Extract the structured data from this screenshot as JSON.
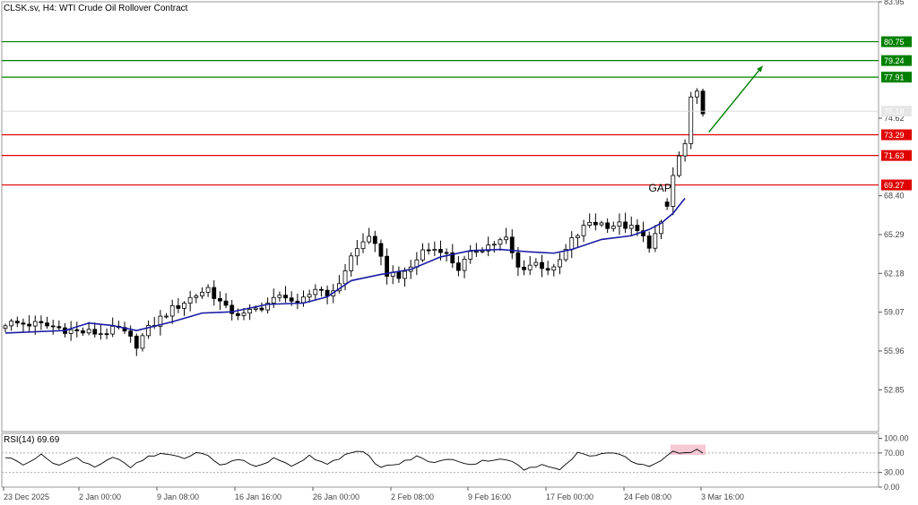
{
  "window": {
    "title": "CLSK.sv, H4:  WTI Crude Oil Rollover Contract"
  },
  "chart_data": [
    {
      "type": "candlestick",
      "title": "CLSK.sv, H4:  WTI Crude Oil Rollover Contract",
      "ylim": [
        49.5,
        83.95
      ],
      "y_ticks": [
        "83.95",
        "80.75",
        "79.24",
        "77.91",
        "74.62",
        "73.29",
        "71.63",
        "69.27",
        "68.40",
        "65.29",
        "62.18",
        "59.07",
        "55.96",
        "52.85"
      ],
      "x_ticks": [
        "23 Dec 2025",
        "2 Jan 00:00",
        "9 Jan 08:00",
        "16 Jan 16:00",
        "26 Jan 00:00",
        "2 Feb 08:00",
        "9 Feb 16:00",
        "17 Feb 00:00",
        "24 Feb 08:00",
        "3 Mar 16:00"
      ],
      "grid": false,
      "current_price": "75.18",
      "resistance_levels": [
        {
          "label": "80.75",
          "value": 80.75,
          "color": "#008000"
        },
        {
          "label": "79.24",
          "value": 79.24,
          "color": "#008000"
        },
        {
          "label": "77.91",
          "value": 77.91,
          "color": "#008000"
        }
      ],
      "support_levels": [
        {
          "label": "73.29",
          "value": 73.29,
          "color": "#e00000"
        },
        {
          "label": "71.63",
          "value": 71.63,
          "color": "#e00000"
        },
        {
          "label": "69.27",
          "value": 69.27,
          "color": "#e00000"
        }
      ],
      "annotations": [
        {
          "text": "GAP",
          "x_index": 110,
          "y": 68.6
        }
      ],
      "arrow": {
        "from": [
          118,
          73.5
        ],
        "to": [
          127,
          78.8
        ],
        "color": "#008000"
      },
      "moving_average": [
        {
          "i": 0,
          "v": 57.4
        },
        {
          "i": 10,
          "v": 57.6
        },
        {
          "i": 14,
          "v": 58.2
        },
        {
          "i": 18,
          "v": 58.0
        },
        {
          "i": 22,
          "v": 57.6
        },
        {
          "i": 28,
          "v": 58.3
        },
        {
          "i": 33,
          "v": 59.0
        },
        {
          "i": 38,
          "v": 59.1
        },
        {
          "i": 44,
          "v": 59.7
        },
        {
          "i": 50,
          "v": 59.8
        },
        {
          "i": 54,
          "v": 60.3
        },
        {
          "i": 58,
          "v": 61.6
        },
        {
          "i": 63,
          "v": 62.1
        },
        {
          "i": 68,
          "v": 62.5
        },
        {
          "i": 73,
          "v": 63.5
        },
        {
          "i": 78,
          "v": 64.0
        },
        {
          "i": 83,
          "v": 64.1
        },
        {
          "i": 88,
          "v": 63.9
        },
        {
          "i": 92,
          "v": 63.8
        },
        {
          "i": 95,
          "v": 64.1
        },
        {
          "i": 100,
          "v": 64.9
        },
        {
          "i": 105,
          "v": 65.2
        },
        {
          "i": 108,
          "v": 65.7
        },
        {
          "i": 110,
          "v": 66.2
        },
        {
          "i": 112,
          "v": 67.0
        },
        {
          "i": 114,
          "v": 68.2
        }
      ],
      "anchors": [
        {
          "i": 0,
          "v": 58.2
        },
        {
          "i": 5,
          "v": 58.1
        },
        {
          "i": 8,
          "v": 57.9
        },
        {
          "i": 12,
          "v": 57.5
        },
        {
          "i": 16,
          "v": 57.4
        },
        {
          "i": 19,
          "v": 57.7
        },
        {
          "i": 22,
          "v": 56.5
        },
        {
          "i": 24,
          "v": 57.7
        },
        {
          "i": 27,
          "v": 59.0
        },
        {
          "i": 31,
          "v": 60.2
        },
        {
          "i": 34,
          "v": 61.0
        },
        {
          "i": 37,
          "v": 59.3
        },
        {
          "i": 40,
          "v": 58.8
        },
        {
          "i": 44,
          "v": 59.8
        },
        {
          "i": 47,
          "v": 60.5
        },
        {
          "i": 49,
          "v": 59.5
        },
        {
          "i": 52,
          "v": 61.0
        },
        {
          "i": 55,
          "v": 60.5
        },
        {
          "i": 58,
          "v": 63.5
        },
        {
          "i": 61,
          "v": 65.3
        },
        {
          "i": 64,
          "v": 62.2
        },
        {
          "i": 67,
          "v": 62.0
        },
        {
          "i": 70,
          "v": 64.0
        },
        {
          "i": 73,
          "v": 64.2
        },
        {
          "i": 76,
          "v": 62.6
        },
        {
          "i": 79,
          "v": 64.1
        },
        {
          "i": 82,
          "v": 64.6
        },
        {
          "i": 84,
          "v": 64.9
        },
        {
          "i": 86,
          "v": 62.6
        },
        {
          "i": 89,
          "v": 63.0
        },
        {
          "i": 92,
          "v": 62.4
        },
        {
          "i": 95,
          "v": 64.8
        },
        {
          "i": 98,
          "v": 66.3
        },
        {
          "i": 101,
          "v": 66.1
        },
        {
          "i": 104,
          "v": 66.0
        },
        {
          "i": 106,
          "v": 65.5
        },
        {
          "i": 108,
          "v": 64.5
        },
        {
          "i": 110,
          "v": 66.0
        },
        {
          "i": 111,
          "v": 67.5
        },
        {
          "i": 112,
          "v": 70.0
        },
        {
          "i": 113,
          "v": 71.5
        },
        {
          "i": 114,
          "v": 72.5
        },
        {
          "i": 115,
          "v": 76.0
        },
        {
          "i": 116,
          "v": 76.5
        },
        {
          "i": 117,
          "v": 75.3
        }
      ],
      "candle_count": 118
    },
    {
      "type": "line",
      "title": "RSI(14) 69.69",
      "ylim": [
        0,
        100
      ],
      "y_ticks": [
        "100.00",
        "70.00",
        "30.00",
        "0.00"
      ],
      "levels": [
        70,
        30
      ],
      "highlight": {
        "from": 112,
        "to": 117,
        "color": "#f7c0cc"
      },
      "anchors": [
        {
          "i": 0,
          "v": 62
        },
        {
          "i": 3,
          "v": 48
        },
        {
          "i": 6,
          "v": 65
        },
        {
          "i": 9,
          "v": 45
        },
        {
          "i": 12,
          "v": 60
        },
        {
          "i": 15,
          "v": 42
        },
        {
          "i": 18,
          "v": 62
        },
        {
          "i": 21,
          "v": 40
        },
        {
          "i": 24,
          "v": 62
        },
        {
          "i": 27,
          "v": 68
        },
        {
          "i": 30,
          "v": 60
        },
        {
          "i": 33,
          "v": 72
        },
        {
          "i": 36,
          "v": 44
        },
        {
          "i": 39,
          "v": 58
        },
        {
          "i": 42,
          "v": 42
        },
        {
          "i": 45,
          "v": 58
        },
        {
          "i": 48,
          "v": 44
        },
        {
          "i": 51,
          "v": 64
        },
        {
          "i": 54,
          "v": 48
        },
        {
          "i": 57,
          "v": 66
        },
        {
          "i": 60,
          "v": 73
        },
        {
          "i": 63,
          "v": 40
        },
        {
          "i": 66,
          "v": 48
        },
        {
          "i": 69,
          "v": 62
        },
        {
          "i": 72,
          "v": 50
        },
        {
          "i": 75,
          "v": 58
        },
        {
          "i": 78,
          "v": 46
        },
        {
          "i": 81,
          "v": 56
        },
        {
          "i": 84,
          "v": 58
        },
        {
          "i": 87,
          "v": 36
        },
        {
          "i": 90,
          "v": 44
        },
        {
          "i": 93,
          "v": 38
        },
        {
          "i": 96,
          "v": 70
        },
        {
          "i": 99,
          "v": 64
        },
        {
          "i": 102,
          "v": 72
        },
        {
          "i": 105,
          "v": 54
        },
        {
          "i": 108,
          "v": 42
        },
        {
          "i": 110,
          "v": 52
        },
        {
          "i": 112,
          "v": 72
        },
        {
          "i": 114,
          "v": 68
        },
        {
          "i": 116,
          "v": 78
        },
        {
          "i": 117,
          "v": 69.69
        }
      ]
    }
  ]
}
